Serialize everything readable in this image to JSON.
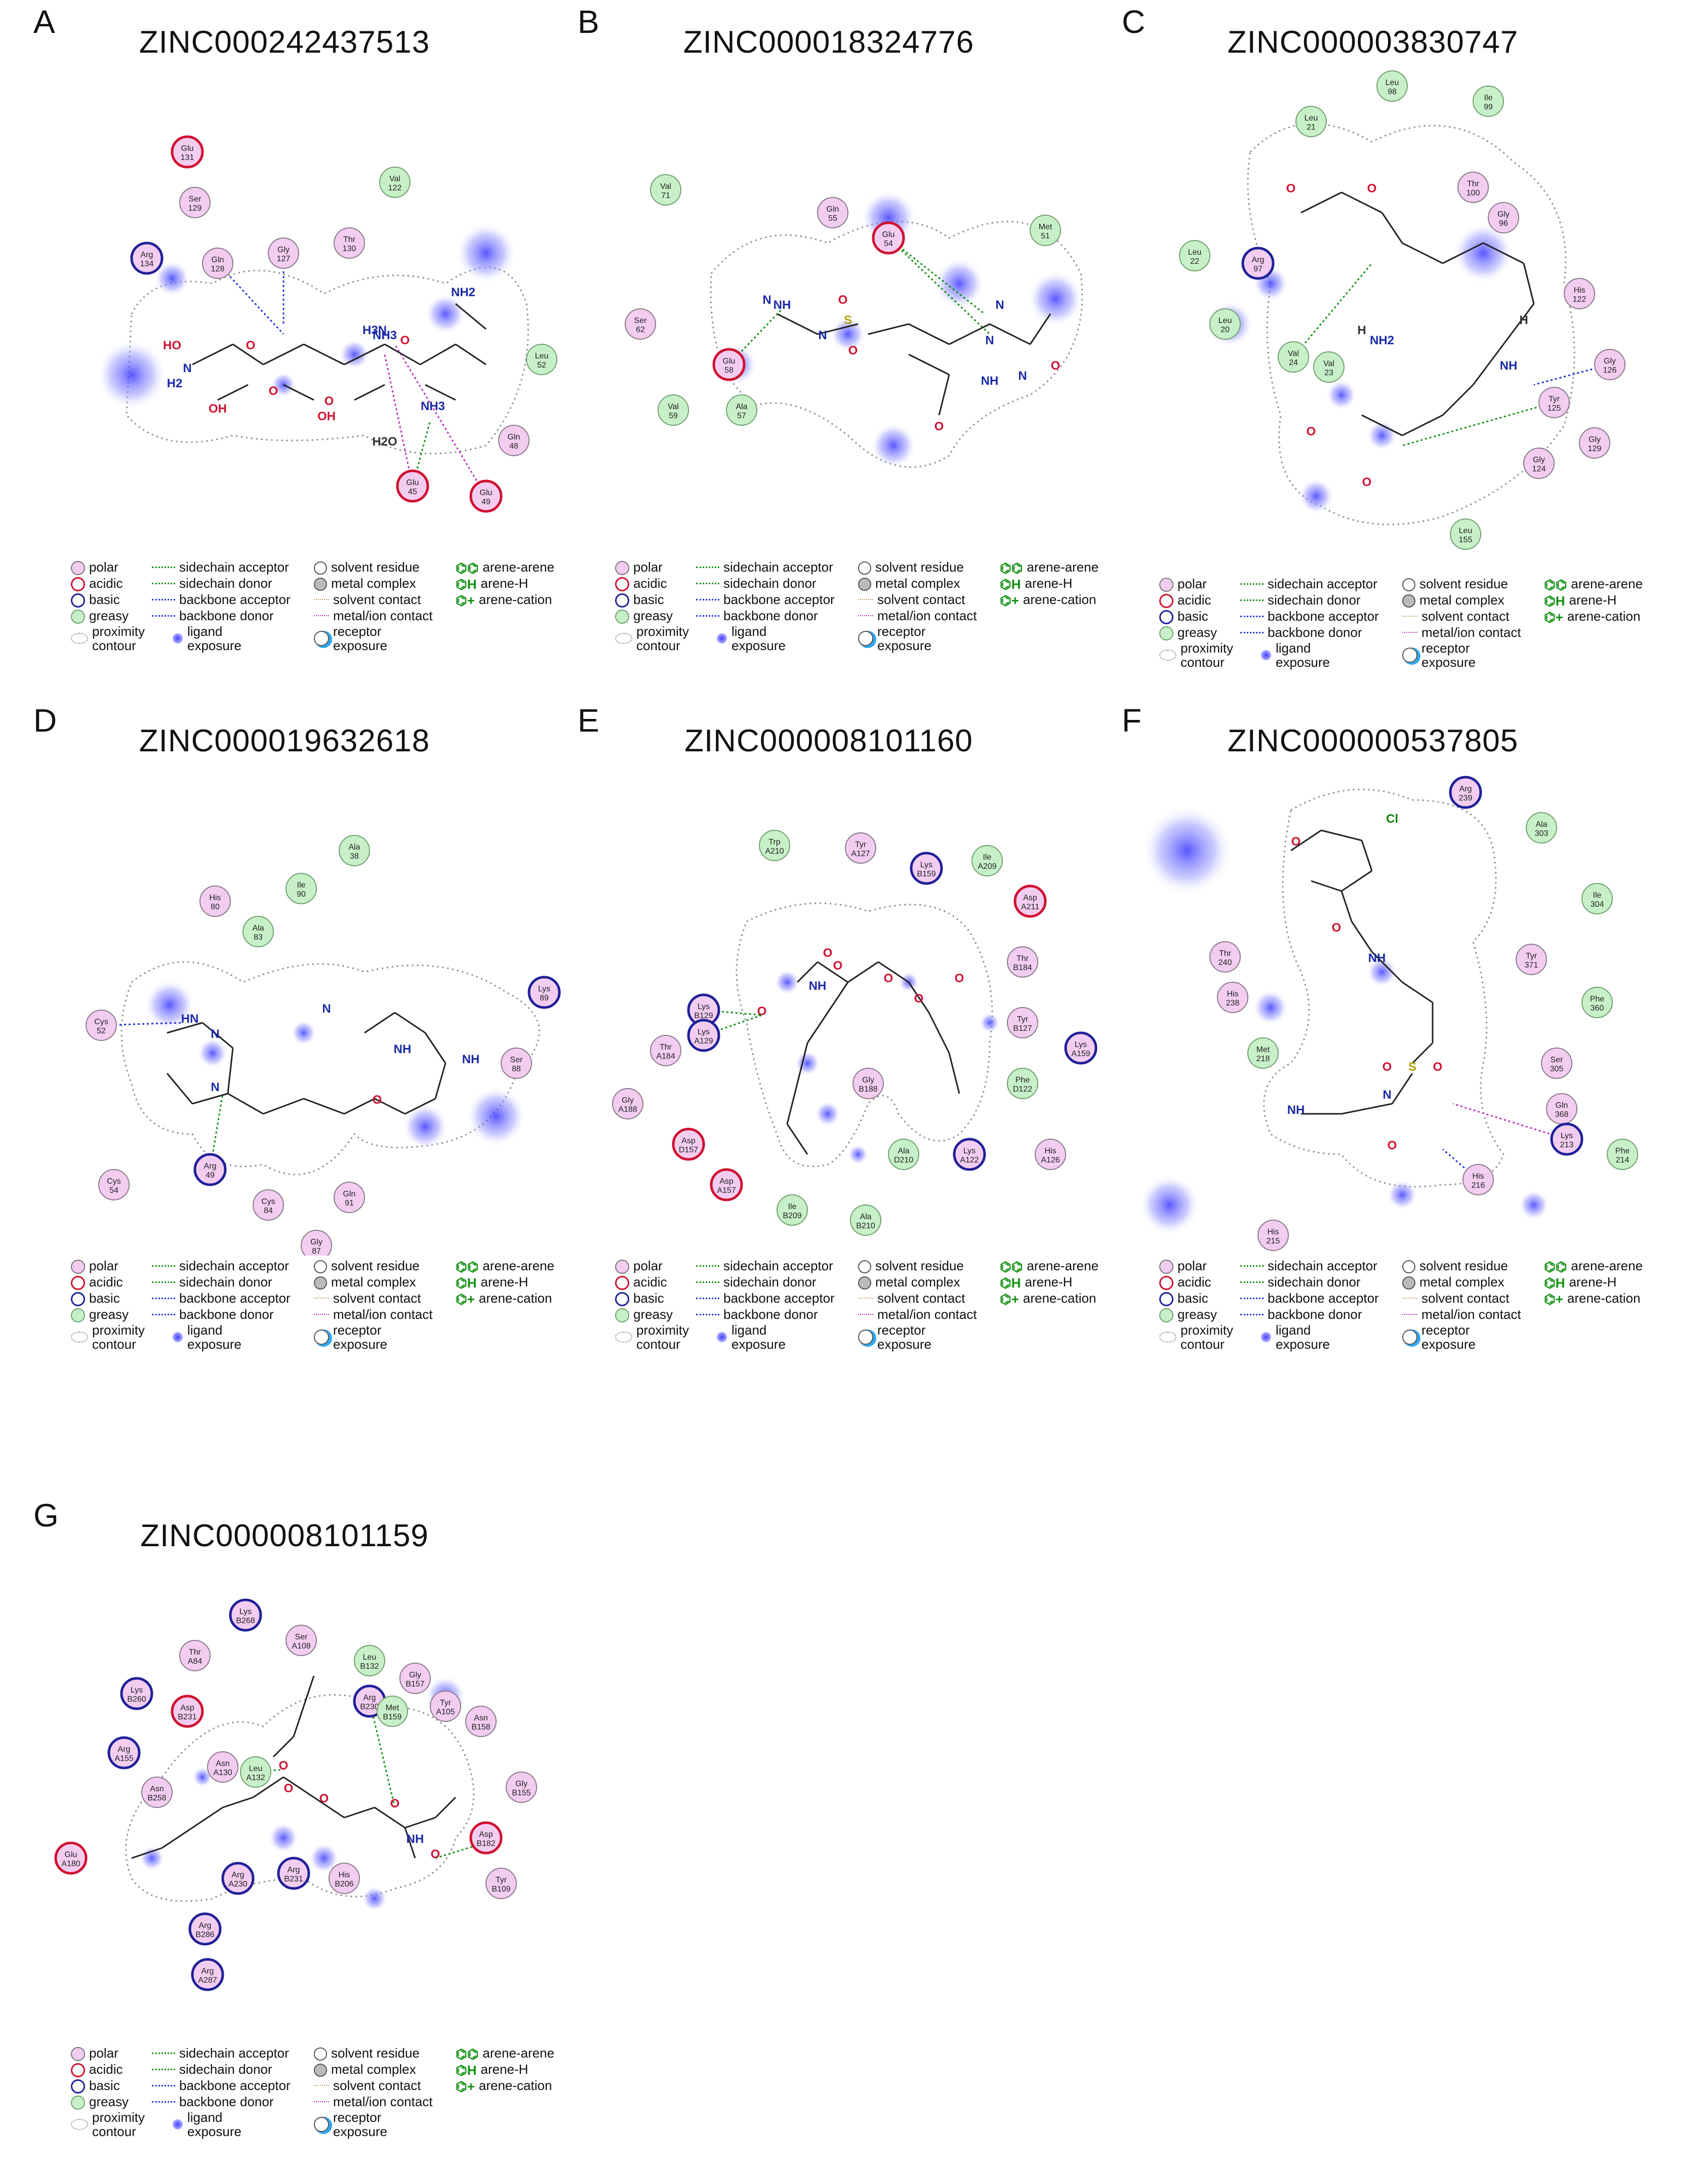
{
  "panels": [
    {
      "label": "A",
      "title": "ZINC000242437513"
    },
    {
      "label": "B",
      "title": "ZINC000018324776"
    },
    {
      "label": "C",
      "title": "ZINC000003830747"
    },
    {
      "label": "D",
      "title": "ZINC000019632618"
    },
    {
      "label": "E",
      "title": "ZINC000008101160"
    },
    {
      "label": "F",
      "title": "ZINC000000537805"
    },
    {
      "label": "G",
      "title": "ZINC000008101159"
    }
  ],
  "legend": {
    "polar": "polar",
    "acidic": "acidic",
    "basic": "basic",
    "greasy": "greasy",
    "proximity1": "proximity",
    "proximity2": "contour",
    "sc_acceptor": "sidechain acceptor",
    "sc_donor": "sidechain donor",
    "bb_acceptor": "backbone acceptor",
    "bb_donor": "backbone donor",
    "ligand1": "ligand",
    "ligand2": "exposure",
    "solvent_residue": "solvent residue",
    "metal_complex": "metal complex",
    "solvent_contact": "solvent contact",
    "metal_ion": "metal/ion contact",
    "receptor1": "receptor",
    "receptor2": "exposure",
    "arene_arene": "arene-arene",
    "arene_h": "arene-H",
    "arene_cation": "arene-cation"
  },
  "colors": {
    "polar": "#f2cdf0",
    "acidic": "#d01030",
    "basic": "#202098",
    "greasy": "#c8f0c8",
    "hbond_green": "#109010",
    "hbond_blue": "#2030e0",
    "metal": "#c030c0"
  },
  "residues": {
    "A": [
      {
        "l1": "Glu",
        "l2": "131",
        "t": "acidic"
      },
      {
        "l1": "Val",
        "l2": "122",
        "t": "greasy"
      },
      {
        "l1": "Ser",
        "l2": "129",
        "t": "polar"
      },
      {
        "l1": "Arg",
        "l2": "134",
        "t": "basic"
      },
      {
        "l1": "Gln",
        "l2": "128",
        "t": "polar"
      },
      {
        "l1": "Gly",
        "l2": "127",
        "t": "polar"
      },
      {
        "l1": "Thr",
        "l2": "130",
        "t": "polar"
      },
      {
        "l1": "Leu",
        "l2": "52",
        "t": "greasy"
      },
      {
        "l1": "Gln",
        "l2": "48",
        "t": "polar"
      },
      {
        "l1": "Glu",
        "l2": "45",
        "t": "acidic"
      },
      {
        "l1": "Glu",
        "l2": "49",
        "t": "acidic"
      }
    ],
    "B": [
      {
        "l1": "Val",
        "l2": "71",
        "t": "greasy"
      },
      {
        "l1": "Gln",
        "l2": "55",
        "t": "polar"
      },
      {
        "l1": "Glu",
        "l2": "54",
        "t": "acidic"
      },
      {
        "l1": "Met",
        "l2": "51",
        "t": "greasy"
      },
      {
        "l1": "Ser",
        "l2": "62",
        "t": "polar"
      },
      {
        "l1": "Glu",
        "l2": "58",
        "t": "acidic"
      },
      {
        "l1": "Val",
        "l2": "59",
        "t": "greasy"
      },
      {
        "l1": "Ala",
        "l2": "57",
        "t": "greasy"
      }
    ],
    "C": [
      {
        "l1": "Leu",
        "l2": "98",
        "t": "greasy"
      },
      {
        "l1": "Ile",
        "l2": "99",
        "t": "greasy"
      },
      {
        "l1": "Leu",
        "l2": "21",
        "t": "greasy"
      },
      {
        "l1": "Thr",
        "l2": "100",
        "t": "polar"
      },
      {
        "l1": "Gly",
        "l2": "96",
        "t": "polar"
      },
      {
        "l1": "Leu",
        "l2": "22",
        "t": "greasy"
      },
      {
        "l1": "Arg",
        "l2": "97",
        "t": "basic"
      },
      {
        "l1": "His",
        "l2": "122",
        "t": "polar"
      },
      {
        "l1": "Leu",
        "l2": "20",
        "t": "greasy"
      },
      {
        "l1": "Gly",
        "l2": "126",
        "t": "polar"
      },
      {
        "l1": "Val",
        "l2": "24",
        "t": "greasy"
      },
      {
        "l1": "Val",
        "l2": "23",
        "t": "greasy"
      },
      {
        "l1": "Tyr",
        "l2": "125",
        "t": "polar"
      },
      {
        "l1": "Gly",
        "l2": "129",
        "t": "polar"
      },
      {
        "l1": "Gly",
        "l2": "124",
        "t": "polar"
      },
      {
        "l1": "Leu",
        "l2": "155",
        "t": "greasy"
      }
    ],
    "D": [
      {
        "l1": "Ala",
        "l2": "38",
        "t": "greasy"
      },
      {
        "l1": "His",
        "l2": "80",
        "t": "polar"
      },
      {
        "l1": "Ile",
        "l2": "90",
        "t": "greasy"
      },
      {
        "l1": "Ala",
        "l2": "83",
        "t": "greasy"
      },
      {
        "l1": "Lys",
        "l2": "89",
        "t": "basic"
      },
      {
        "l1": "Cys",
        "l2": "52",
        "t": "polar"
      },
      {
        "l1": "Ser",
        "l2": "88",
        "t": "polar"
      },
      {
        "l1": "Arg",
        "l2": "49",
        "t": "basic"
      },
      {
        "l1": "Cys",
        "l2": "54",
        "t": "polar"
      },
      {
        "l1": "Cys",
        "l2": "84",
        "t": "polar"
      },
      {
        "l1": "Gln",
        "l2": "91",
        "t": "polar"
      },
      {
        "l1": "Gly",
        "l2": "87",
        "t": "polar"
      }
    ],
    "E": [
      {
        "l1": "Trp",
        "l2": "A210",
        "t": "greasy"
      },
      {
        "l1": "Tyr",
        "l2": "A127",
        "t": "polar"
      },
      {
        "l1": "Lys",
        "l2": "B159",
        "t": "basic"
      },
      {
        "l1": "Ile",
        "l2": "A209",
        "t": "greasy"
      },
      {
        "l1": "Asp",
        "l2": "A211",
        "t": "acidic"
      },
      {
        "l1": "Thr",
        "l2": "B184",
        "t": "polar"
      },
      {
        "l1": "Lys",
        "l2": "B129",
        "t": "basic"
      },
      {
        "l1": "Lys",
        "l2": "A129",
        "t": "basic"
      },
      {
        "l1": "Tyr",
        "l2": "B127",
        "t": "polar"
      },
      {
        "l1": "Thr",
        "l2": "A184",
        "t": "polar"
      },
      {
        "l1": "Lys",
        "l2": "A159",
        "t": "basic"
      },
      {
        "l1": "Phe",
        "l2": "D122",
        "t": "greasy"
      },
      {
        "l1": "Gly",
        "l2": "B188",
        "t": "polar"
      },
      {
        "l1": "Gly",
        "l2": "A188",
        "t": "polar"
      },
      {
        "l1": "Asp",
        "l2": "D157",
        "t": "acidic"
      },
      {
        "l1": "Ala",
        "l2": "D210",
        "t": "greasy"
      },
      {
        "l1": "Lys",
        "l2": "A122",
        "t": "basic"
      },
      {
        "l1": "His",
        "l2": "A126",
        "t": "polar"
      },
      {
        "l1": "Asp",
        "l2": "A157",
        "t": "acidic"
      },
      {
        "l1": "Ile",
        "l2": "B209",
        "t": "greasy"
      },
      {
        "l1": "Ala",
        "l2": "B210",
        "t": "greasy"
      }
    ],
    "F": [
      {
        "l1": "Arg",
        "l2": "239",
        "t": "basic"
      },
      {
        "l1": "Ala",
        "l2": "303",
        "t": "greasy"
      },
      {
        "l1": "Ile",
        "l2": "304",
        "t": "greasy"
      },
      {
        "l1": "Thr",
        "l2": "240",
        "t": "polar"
      },
      {
        "l1": "Tyr",
        "l2": "371",
        "t": "polar"
      },
      {
        "l1": "His",
        "l2": "238",
        "t": "polar"
      },
      {
        "l1": "Phe",
        "l2": "360",
        "t": "greasy"
      },
      {
        "l1": "Met",
        "l2": "218",
        "t": "greasy"
      },
      {
        "l1": "Ser",
        "l2": "305",
        "t": "polar"
      },
      {
        "l1": "Gln",
        "l2": "368",
        "t": "polar"
      },
      {
        "l1": "Lys",
        "l2": "213",
        "t": "basic"
      },
      {
        "l1": "Phe",
        "l2": "214",
        "t": "greasy"
      },
      {
        "l1": "His",
        "l2": "216",
        "t": "polar"
      },
      {
        "l1": "His",
        "l2": "215",
        "t": "polar"
      }
    ],
    "G": [
      {
        "l1": "Lys",
        "l2": "B268",
        "t": "basic"
      },
      {
        "l1": "Ser",
        "l2": "A108",
        "t": "polar"
      },
      {
        "l1": "Thr",
        "l2": "A84",
        "t": "polar"
      },
      {
        "l1": "Leu",
        "l2": "B132",
        "t": "greasy"
      },
      {
        "l1": "Lys",
        "l2": "B260",
        "t": "basic"
      },
      {
        "l1": "Asp",
        "l2": "B231",
        "t": "acidic"
      },
      {
        "l1": "Arg",
        "l2": "B230",
        "t": "basic"
      },
      {
        "l1": "Gly",
        "l2": "B157",
        "t": "polar"
      },
      {
        "l1": "Met",
        "l2": "B159",
        "t": "greasy"
      },
      {
        "l1": "Tyr",
        "l2": "A105",
        "t": "polar"
      },
      {
        "l1": "Asn",
        "l2": "B158",
        "t": "polar"
      },
      {
        "l1": "Arg",
        "l2": "A155",
        "t": "basic"
      },
      {
        "l1": "Asn",
        "l2": "A130",
        "t": "polar"
      },
      {
        "l1": "Leu",
        "l2": "A132",
        "t": "greasy"
      },
      {
        "l1": "Asn",
        "l2": "B258",
        "t": "polar"
      },
      {
        "l1": "Gly",
        "l2": "B155",
        "t": "polar"
      },
      {
        "l1": "Asp",
        "l2": "B182",
        "t": "acidic"
      },
      {
        "l1": "Glu",
        "l2": "A180",
        "t": "acidic"
      },
      {
        "l1": "Arg",
        "l2": "A230",
        "t": "basic"
      },
      {
        "l1": "Arg",
        "l2": "B231",
        "t": "basic"
      },
      {
        "l1": "His",
        "l2": "B206",
        "t": "polar"
      },
      {
        "l1": "Tyr",
        "l2": "B109",
        "t": "polar"
      },
      {
        "l1": "Arg",
        "l2": "B286",
        "t": "basic"
      },
      {
        "l1": "Arg",
        "l2": "A287",
        "t": "basic"
      }
    ]
  },
  "atoms": {
    "A": [
      "HO",
      "N",
      "H2",
      "OH",
      "O",
      "O",
      "O",
      "H3N",
      "OH",
      "NH3",
      "O",
      "NH3",
      "NH2",
      "H2O"
    ],
    "B": [
      "N",
      "NH",
      "N",
      "S",
      "O",
      "O",
      "N",
      "N",
      "N",
      "NH",
      "O",
      "O"
    ],
    "C": [
      "O",
      "O",
      "NH2",
      "H",
      "H",
      "NH",
      "O",
      "O"
    ],
    "D": [
      "HN",
      "N",
      "N",
      "N",
      "NH",
      "NH",
      "O"
    ],
    "E": [
      "O",
      "O",
      "NH",
      "O",
      "O",
      "O",
      "O"
    ],
    "F": [
      "Cl",
      "O",
      "O",
      "NH",
      "S",
      "O",
      "O",
      "N",
      "NH",
      "O"
    ],
    "G": [
      "O",
      "O",
      "O",
      "O",
      "NH",
      "O"
    ]
  }
}
